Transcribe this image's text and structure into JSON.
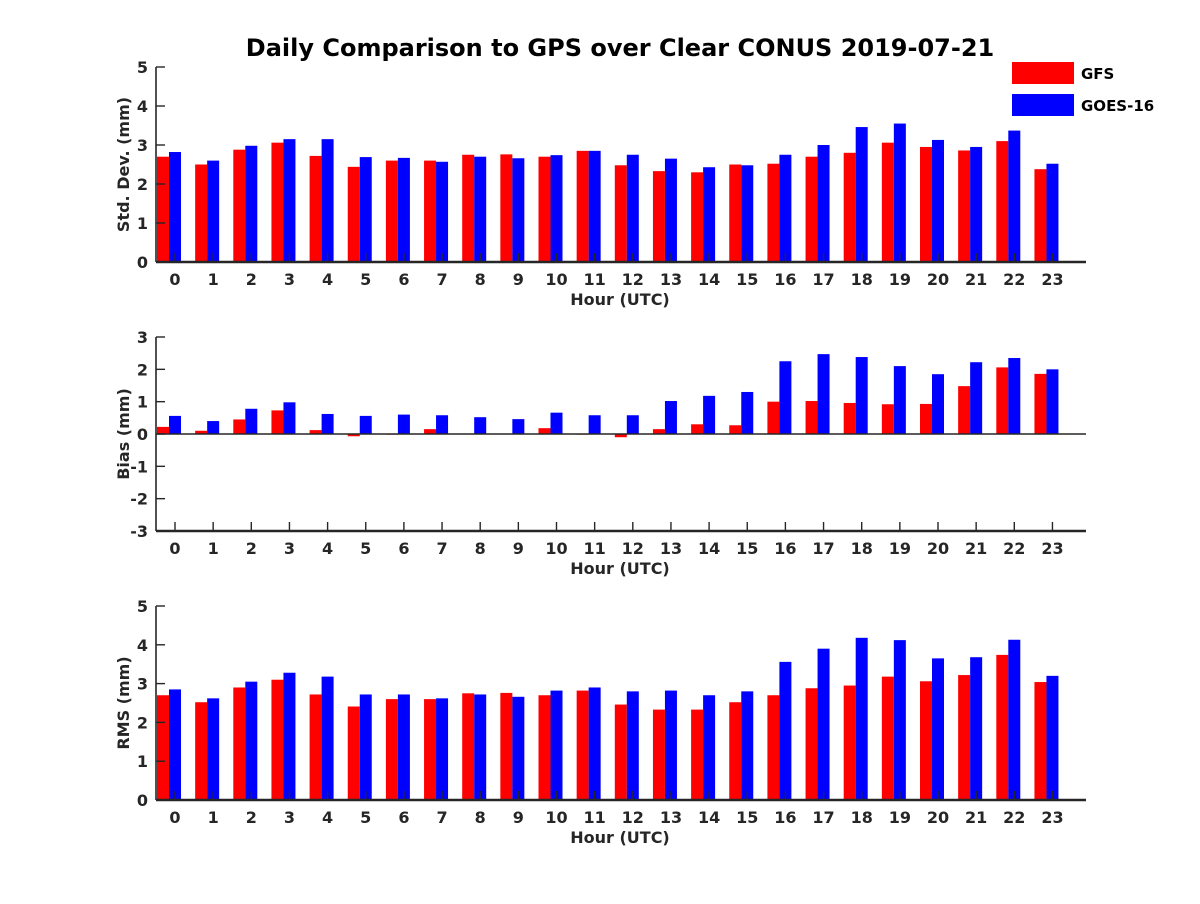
{
  "title": "Daily Comparison to GPS over Clear CONUS 2019-07-21",
  "colors": {
    "gfs": "#ff0000",
    "goes": "#0000ff",
    "axis": "#262626"
  },
  "legend": [
    {
      "name": "GFS",
      "color": "#ff0000"
    },
    {
      "name": "GOES-16",
      "color": "#0000ff"
    }
  ],
  "chart_data": [
    {
      "type": "bar",
      "title": "Daily Comparison to GPS over Clear CONUS 2019-07-21",
      "xlabel": "Hour (UTC)",
      "ylabel": "Std. Dev. (mm)",
      "ylim": [
        0,
        5
      ],
      "yticks": [
        0,
        1,
        2,
        3,
        4,
        5
      ],
      "grid": false,
      "legend_position": "top-right",
      "categories": [
        "0",
        "1",
        "2",
        "3",
        "4",
        "5",
        "6",
        "7",
        "8",
        "9",
        "10",
        "11",
        "12",
        "13",
        "14",
        "15",
        "16",
        "17",
        "18",
        "19",
        "20",
        "21",
        "22",
        "23"
      ],
      "series": [
        {
          "name": "GFS",
          "values": [
            2.7,
            2.5,
            2.88,
            3.06,
            2.72,
            2.44,
            2.6,
            2.6,
            2.75,
            2.76,
            2.7,
            2.85,
            2.48,
            2.33,
            2.3,
            2.5,
            2.52,
            2.7,
            2.8,
            3.06,
            2.95,
            2.86,
            3.1,
            2.38
          ]
        },
        {
          "name": "GOES-16",
          "values": [
            2.82,
            2.6,
            2.98,
            3.15,
            3.15,
            2.69,
            2.67,
            2.57,
            2.7,
            2.66,
            2.74,
            2.85,
            2.75,
            2.65,
            2.43,
            2.48,
            2.75,
            3.0,
            3.46,
            3.55,
            3.13,
            2.95,
            3.37,
            2.52
          ]
        }
      ]
    },
    {
      "type": "bar",
      "xlabel": "Hour (UTC)",
      "ylabel": "Bias (mm)",
      "ylim": [
        -3,
        3
      ],
      "yticks": [
        -3,
        -2,
        -1,
        0,
        1,
        2,
        3
      ],
      "grid": false,
      "categories": [
        "0",
        "1",
        "2",
        "3",
        "4",
        "5",
        "6",
        "7",
        "8",
        "9",
        "10",
        "11",
        "12",
        "13",
        "14",
        "15",
        "16",
        "17",
        "18",
        "19",
        "20",
        "21",
        "22",
        "23"
      ],
      "series": [
        {
          "name": "GFS",
          "values": [
            0.22,
            0.1,
            0.45,
            0.73,
            0.12,
            -0.07,
            -0.02,
            0.15,
            0.0,
            0.0,
            0.18,
            -0.02,
            -0.1,
            0.15,
            0.3,
            0.27,
            1.0,
            1.02,
            0.96,
            0.92,
            0.93,
            1.48,
            2.06,
            1.86
          ]
        },
        {
          "name": "GOES-16",
          "values": [
            0.56,
            0.4,
            0.78,
            0.98,
            0.62,
            0.56,
            0.6,
            0.58,
            0.52,
            0.46,
            0.66,
            0.58,
            0.58,
            1.02,
            1.18,
            1.3,
            2.25,
            2.47,
            2.38,
            2.1,
            1.85,
            2.22,
            2.35,
            2.0
          ]
        }
      ]
    },
    {
      "type": "bar",
      "xlabel": "Hour (UTC)",
      "ylabel": "RMS (mm)",
      "ylim": [
        0,
        5
      ],
      "yticks": [
        0,
        1,
        2,
        3,
        4,
        5
      ],
      "grid": false,
      "categories": [
        "0",
        "1",
        "2",
        "3",
        "4",
        "5",
        "6",
        "7",
        "8",
        "9",
        "10",
        "11",
        "12",
        "13",
        "14",
        "15",
        "16",
        "17",
        "18",
        "19",
        "20",
        "21",
        "22",
        "23"
      ],
      "series": [
        {
          "name": "GFS",
          "values": [
            2.7,
            2.52,
            2.9,
            3.1,
            2.72,
            2.41,
            2.6,
            2.6,
            2.75,
            2.76,
            2.7,
            2.82,
            2.46,
            2.33,
            2.33,
            2.52,
            2.7,
            2.88,
            2.95,
            3.18,
            3.06,
            3.22,
            3.74,
            3.04
          ]
        },
        {
          "name": "GOES-16",
          "values": [
            2.85,
            2.62,
            3.05,
            3.28,
            3.18,
            2.72,
            2.72,
            2.62,
            2.72,
            2.66,
            2.82,
            2.9,
            2.8,
            2.82,
            2.7,
            2.8,
            3.56,
            3.9,
            4.18,
            4.12,
            3.65,
            3.68,
            4.13,
            3.2
          ]
        }
      ]
    }
  ]
}
